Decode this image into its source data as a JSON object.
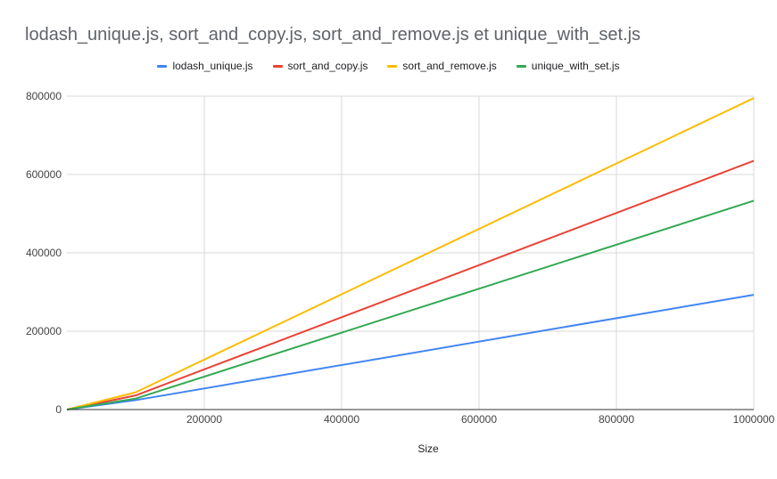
{
  "chart_data": {
    "type": "line",
    "title": "lodash_unique.js, sort_and_copy.js, sort_and_remove.js et unique_with_set.js",
    "xlabel": "Size",
    "ylabel": "",
    "xlim": [
      0,
      1000000
    ],
    "ylim": [
      0,
      800000
    ],
    "x_ticks": [
      200000,
      400000,
      600000,
      800000,
      1000000
    ],
    "y_ticks": [
      0,
      200000,
      400000,
      600000,
      800000
    ],
    "x_tick_labels": [
      "200000",
      "400000",
      "600000",
      "800000",
      "1000000"
    ],
    "y_tick_labels": [
      "0",
      "200000",
      "400000",
      "600000",
      "800000"
    ],
    "grid": true,
    "legend_position": "top",
    "x": [
      0,
      100000,
      1000000
    ],
    "series": [
      {
        "name": "lodash_unique.js",
        "color": "#4285f4",
        "values": [
          0,
          24000,
          293000
        ]
      },
      {
        "name": "sort_and_copy.js",
        "color": "#ea4335",
        "values": [
          0,
          36000,
          635000
        ]
      },
      {
        "name": "sort_and_remove.js",
        "color": "#fbbc04",
        "values": [
          0,
          44000,
          795000
        ]
      },
      {
        "name": "unique_with_set.js",
        "color": "#34a853",
        "values": [
          0,
          28000,
          533000
        ]
      }
    ]
  }
}
